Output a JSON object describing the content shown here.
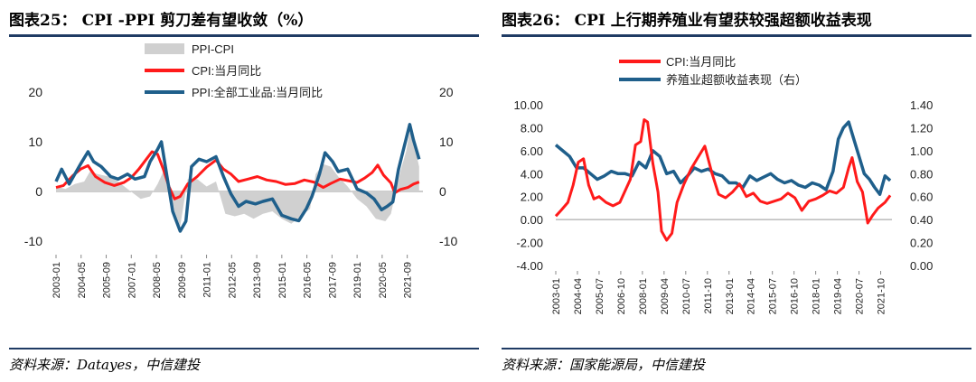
{
  "panels": {
    "left": {
      "title": "图表25：  CPI -PPI  剪刀差有望收敛（%）",
      "source": "资料来源：Datayes，中信建投"
    },
    "right": {
      "title": "图表26：  CPI 上行期养殖业有望获较强超额收益表现",
      "source": "资料来源：国家能源局，中信建投"
    }
  },
  "chart_data": [
    {
      "type": "line",
      "title": "",
      "ylim_left": [
        -10,
        20
      ],
      "ylim_right": [
        -10,
        20
      ],
      "yticks": [
        "20",
        "10",
        "0",
        "-10"
      ],
      "x_ticks": [
        "2003-01",
        "2004-05",
        "2005-09",
        "2007-01",
        "2008-05",
        "2009-09",
        "2011-01",
        "2012-05",
        "2013-09",
        "2015-01",
        "2016-05",
        "2017-09",
        "2019-01",
        "2020-05",
        "2021-09"
      ],
      "x_range": [
        2003.0,
        2022.5
      ],
      "legend": [
        "PPI-CPI",
        "CPI:当月同比",
        "PPI:全部工业品:当月同比"
      ],
      "legend_position": "top-center",
      "colors": {
        "area": "#d0d0d0",
        "cpi": "#ff1a1a",
        "ppi": "#1f5f8b"
      },
      "series": [
        {
          "name": "PPI-CPI",
          "kind": "area",
          "x": [
            2003.0,
            2003.5,
            2004.0,
            2004.5,
            2004.8,
            2005.2,
            2005.8,
            2006.3,
            2006.8,
            2007.5,
            2008.0,
            2008.4,
            2008.7,
            2009.0,
            2009.3,
            2009.6,
            2010.0,
            2010.5,
            2011.0,
            2011.5,
            2012.0,
            2012.5,
            2013.0,
            2013.5,
            2014.0,
            2014.5,
            2015.0,
            2015.5,
            2016.0,
            2016.5,
            2016.8,
            2017.2,
            2017.6,
            2018.0,
            2018.5,
            2019.0,
            2019.5,
            2020.0,
            2020.5,
            2020.8,
            2021.0,
            2021.3,
            2021.6,
            2021.8,
            2022.0,
            2022.3
          ],
          "y": [
            1.0,
            0.5,
            1.5,
            2.0,
            4.0,
            3.5,
            3.0,
            2.0,
            0.5,
            -1.5,
            -1.0,
            1.5,
            4.0,
            2.0,
            -4.0,
            -7.0,
            2.5,
            2.5,
            1.0,
            2.0,
            -4.5,
            -5.0,
            -4.5,
            -5.5,
            -4.5,
            -4.0,
            -5.5,
            -6.5,
            -5.0,
            -3.5,
            3.5,
            5.5,
            5.0,
            3.0,
            1.0,
            -1.5,
            -3.0,
            -5.5,
            -6.0,
            -4.5,
            -1.0,
            4.0,
            8.0,
            12.0,
            10.0,
            5.0
          ]
        },
        {
          "name": "CPI:当月同比",
          "kind": "line",
          "x": [
            2003.0,
            2003.4,
            2003.9,
            2004.3,
            2004.7,
            2005.1,
            2005.6,
            2006.1,
            2006.6,
            2007.0,
            2007.4,
            2007.8,
            2008.1,
            2008.4,
            2008.7,
            2009.0,
            2009.3,
            2009.6,
            2010.0,
            2010.5,
            2011.0,
            2011.5,
            2011.9,
            2012.3,
            2012.7,
            2013.2,
            2013.7,
            2014.2,
            2014.7,
            2015.2,
            2015.7,
            2016.2,
            2016.7,
            2017.2,
            2017.6,
            2018.1,
            2018.6,
            2019.0,
            2019.4,
            2019.8,
            2020.1,
            2020.4,
            2020.8,
            2021.0,
            2021.3,
            2021.7,
            2022.0,
            2022.3
          ],
          "y": [
            0.8,
            1.2,
            3.2,
            4.5,
            5.2,
            3.0,
            1.8,
            1.2,
            1.8,
            2.8,
            4.5,
            6.5,
            8.0,
            7.5,
            4.5,
            1.0,
            -1.5,
            -1.0,
            1.5,
            3.0,
            4.9,
            6.3,
            4.5,
            3.5,
            2.0,
            2.5,
            3.0,
            2.3,
            2.0,
            1.4,
            1.6,
            2.3,
            1.9,
            0.8,
            1.6,
            2.5,
            2.1,
            1.8,
            2.7,
            3.8,
            5.3,
            3.3,
            1.7,
            -0.3,
            0.4,
            0.8,
            1.5,
            1.9
          ]
        },
        {
          "name": "PPI:全部工业品:当月同比",
          "kind": "line",
          "x": [
            2003.0,
            2003.3,
            2003.7,
            2004.0,
            2004.3,
            2004.7,
            2005.0,
            2005.4,
            2005.9,
            2006.3,
            2006.8,
            2007.2,
            2007.7,
            2008.0,
            2008.4,
            2008.6,
            2008.9,
            2009.2,
            2009.6,
            2009.9,
            2010.2,
            2010.6,
            2011.0,
            2011.5,
            2011.9,
            2012.3,
            2012.7,
            2013.1,
            2013.6,
            2014.0,
            2014.5,
            2015.0,
            2015.5,
            2015.9,
            2016.3,
            2016.6,
            2017.0,
            2017.3,
            2017.7,
            2018.0,
            2018.5,
            2019.0,
            2019.5,
            2019.9,
            2020.3,
            2020.6,
            2020.9,
            2021.2,
            2021.5,
            2021.8,
            2022.0,
            2022.3
          ],
          "y": [
            2.0,
            4.5,
            1.5,
            3.5,
            5.5,
            8.0,
            6.0,
            5.0,
            3.0,
            2.5,
            3.5,
            2.5,
            3.0,
            6.0,
            8.5,
            10.0,
            3.0,
            -4.0,
            -8.0,
            -6.0,
            5.0,
            6.5,
            6.0,
            7.0,
            3.0,
            -0.5,
            -3.0,
            -2.0,
            -2.5,
            -2.0,
            -1.5,
            -4.8,
            -5.5,
            -5.9,
            -3.5,
            -1.0,
            3.5,
            7.8,
            6.0,
            4.0,
            4.5,
            0.5,
            -0.3,
            -1.5,
            -3.7,
            -3.0,
            -2.1,
            4.4,
            9.0,
            13.5,
            10.3,
            6.5
          ]
        }
      ]
    },
    {
      "type": "line",
      "title": "",
      "ylim_left": [
        -4.0,
        10.0
      ],
      "ylim_right": [
        0.0,
        1.4
      ],
      "yticks_left": [
        "10.00",
        "8.00",
        "6.00",
        "4.00",
        "2.00",
        "0.00",
        "-2.00",
        "-4.00"
      ],
      "yticks_right": [
        "1.40",
        "1.20",
        "1.00",
        "0.80",
        "0.60",
        "0.40",
        "0.20",
        "0.00"
      ],
      "x_ticks": [
        "2003-01",
        "2004-04",
        "2005-07",
        "2006-10",
        "2008-01",
        "2009-04",
        "2010-07",
        "2011-10",
        "2013-01",
        "2014-04",
        "2015-07",
        "2016-10",
        "2018-01",
        "2019-04",
        "2020-07",
        "2021-10"
      ],
      "x_range": [
        2003.0,
        2022.4
      ],
      "legend": [
        "CPI:当月同比",
        "养殖业超额收益表现（右）"
      ],
      "legend_position": "top-center",
      "colors": {
        "cpi": "#ff1a1a",
        "excess": "#1f5f8b"
      },
      "series": [
        {
          "name": "CPI:当月同比",
          "axis": "left",
          "x": [
            2003.0,
            2003.3,
            2003.7,
            2004.0,
            2004.3,
            2004.6,
            2004.9,
            2005.2,
            2005.5,
            2005.9,
            2006.3,
            2006.7,
            2007.0,
            2007.3,
            2007.6,
            2007.9,
            2008.1,
            2008.3,
            2008.6,
            2008.9,
            2009.1,
            2009.4,
            2009.7,
            2010.0,
            2010.4,
            2010.8,
            2011.2,
            2011.6,
            2012.0,
            2012.4,
            2012.8,
            2013.2,
            2013.6,
            2014.0,
            2014.4,
            2014.8,
            2015.2,
            2015.6,
            2016.0,
            2016.4,
            2016.8,
            2017.2,
            2017.6,
            2018.0,
            2018.4,
            2018.8,
            2019.2,
            2019.6,
            2019.9,
            2020.1,
            2020.4,
            2020.7,
            2021.0,
            2021.3,
            2021.6,
            2022.0,
            2022.3
          ],
          "y": [
            0.3,
            0.8,
            1.5,
            3.0,
            5.0,
            5.3,
            3.0,
            1.8,
            2.0,
            1.5,
            1.2,
            1.5,
            2.5,
            3.5,
            6.5,
            6.8,
            8.7,
            8.5,
            4.9,
            2.4,
            -1.0,
            -1.8,
            -1.2,
            1.5,
            3.1,
            4.4,
            5.4,
            6.4,
            4.1,
            2.2,
            1.9,
            2.4,
            3.1,
            2.0,
            2.3,
            1.6,
            1.4,
            1.6,
            1.8,
            2.3,
            1.9,
            0.8,
            1.6,
            1.8,
            2.1,
            2.5,
            2.3,
            2.8,
            4.5,
            5.4,
            3.3,
            2.4,
            -0.3,
            0.4,
            1.0,
            1.5,
            2.1
          ]
        },
        {
          "name": "养殖业超额收益表现（右）",
          "axis": "right",
          "x": [
            2003.0,
            2003.4,
            2003.8,
            2004.2,
            2004.6,
            2005.0,
            2005.4,
            2005.8,
            2006.2,
            2006.6,
            2007.0,
            2007.4,
            2007.8,
            2008.2,
            2008.6,
            2009.0,
            2009.4,
            2009.8,
            2010.2,
            2010.6,
            2011.0,
            2011.4,
            2011.8,
            2012.2,
            2012.6,
            2013.0,
            2013.4,
            2013.8,
            2014.2,
            2014.6,
            2015.0,
            2015.4,
            2015.8,
            2016.2,
            2016.6,
            2017.0,
            2017.4,
            2017.8,
            2018.2,
            2018.6,
            2019.0,
            2019.3,
            2019.6,
            2019.9,
            2020.2,
            2020.5,
            2020.8,
            2021.1,
            2021.4,
            2021.7,
            2022.0,
            2022.3
          ],
          "y": [
            1.05,
            1.0,
            0.95,
            0.85,
            0.85,
            0.8,
            0.75,
            0.78,
            0.82,
            0.8,
            0.8,
            0.78,
            0.9,
            0.85,
            1.0,
            0.95,
            0.8,
            0.82,
            0.72,
            0.78,
            0.85,
            0.82,
            0.84,
            0.8,
            0.78,
            0.72,
            0.72,
            0.68,
            0.78,
            0.74,
            0.77,
            0.8,
            0.75,
            0.72,
            0.74,
            0.7,
            0.68,
            0.72,
            0.7,
            0.66,
            0.82,
            1.1,
            1.2,
            1.25,
            1.1,
            0.95,
            0.8,
            0.75,
            0.68,
            0.62,
            0.78,
            0.74
          ]
        }
      ]
    }
  ]
}
